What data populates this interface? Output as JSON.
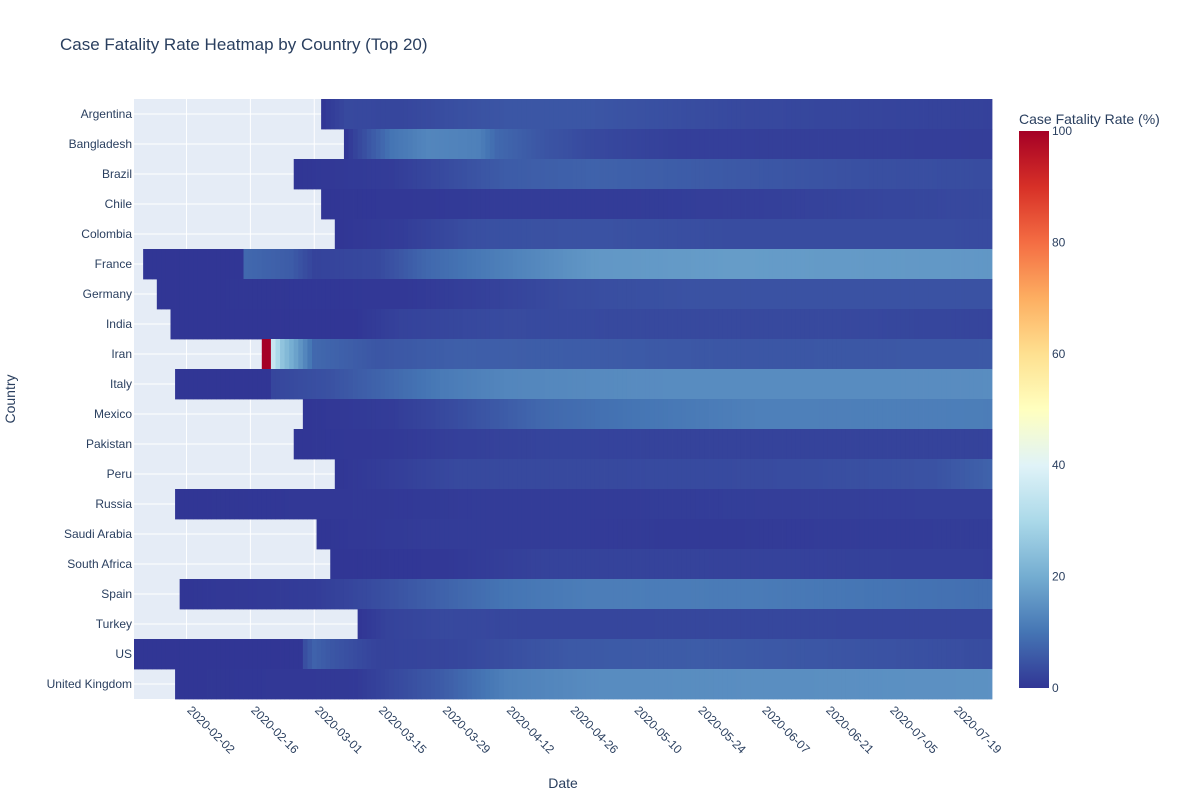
{
  "chart_data": {
    "type": "heatmap",
    "title": "Case Fatality Rate Heatmap by Country (Top 20)",
    "xlabel": "Date",
    "ylabel": "Country",
    "x_start": "2020-01-22",
    "x_end": "2020-07-27",
    "x_ticks": [
      "2020-02-02",
      "2020-02-16",
      "2020-03-01",
      "2020-03-15",
      "2020-03-29",
      "2020-04-12",
      "2020-04-26",
      "2020-05-10",
      "2020-05-24",
      "2020-06-07",
      "2020-06-21",
      "2020-07-05",
      "2020-07-19"
    ],
    "colorbar": {
      "title": "Case Fatality Rate (%)",
      "range": [
        0,
        100
      ],
      "ticks": [
        "0",
        "20",
        "40",
        "60",
        "80",
        "100"
      ],
      "colorscale": [
        "#313695",
        "#4575b4",
        "#74add1",
        "#abd9e9",
        "#e0f3f8",
        "#ffffbf",
        "#fee090",
        "#fdae61",
        "#f46d43",
        "#d73027",
        "#a50026"
      ]
    },
    "missing_color": "#e5ecf6",
    "countries": [
      {
        "name": "Argentina",
        "first_date": "2020-03-03",
        "cfr": [
          [
            "2020-03-03",
            0
          ],
          [
            "2020-03-08",
            3
          ],
          [
            "2020-03-20",
            2.5
          ],
          [
            "2020-04-01",
            4
          ],
          [
            "2020-04-12",
            5
          ],
          [
            "2020-05-01",
            5
          ],
          [
            "2020-06-01",
            3
          ],
          [
            "2020-07-27",
            1.8
          ]
        ]
      },
      {
        "name": "Bangladesh",
        "first_date": "2020-03-08",
        "cfr": [
          [
            "2020-03-08",
            0
          ],
          [
            "2020-03-18",
            10
          ],
          [
            "2020-03-26",
            13
          ],
          [
            "2020-04-06",
            12
          ],
          [
            "2020-04-10",
            8
          ],
          [
            "2020-04-20",
            5
          ],
          [
            "2020-05-01",
            3
          ],
          [
            "2020-05-20",
            1.5
          ],
          [
            "2020-07-27",
            1.3
          ]
        ]
      },
      {
        "name": "Brazil",
        "first_date": "2020-02-26",
        "cfr": [
          [
            "2020-02-26",
            0
          ],
          [
            "2020-03-18",
            1
          ],
          [
            "2020-03-28",
            3
          ],
          [
            "2020-04-12",
            6
          ],
          [
            "2020-05-01",
            7
          ],
          [
            "2020-06-01",
            5.5
          ],
          [
            "2020-07-01",
            4
          ],
          [
            "2020-07-27",
            3.5
          ]
        ]
      },
      {
        "name": "Chile",
        "first_date": "2020-03-03",
        "cfr": [
          [
            "2020-03-03",
            0
          ],
          [
            "2020-03-28",
            0.5
          ],
          [
            "2020-04-12",
            1
          ],
          [
            "2020-05-10",
            1
          ],
          [
            "2020-06-07",
            1.5
          ],
          [
            "2020-06-21",
            2
          ],
          [
            "2020-07-05",
            2.5
          ],
          [
            "2020-07-27",
            3
          ]
        ]
      },
      {
        "name": "Colombia",
        "first_date": "2020-03-06",
        "cfr": [
          [
            "2020-03-06",
            0
          ],
          [
            "2020-03-20",
            1
          ],
          [
            "2020-04-05",
            4
          ],
          [
            "2020-05-01",
            4.5
          ],
          [
            "2020-06-01",
            3.5
          ],
          [
            "2020-07-27",
            3.4
          ]
        ]
      },
      {
        "name": "France",
        "first_date": "2020-01-24",
        "cfr": [
          [
            "2020-01-24",
            0
          ],
          [
            "2020-02-14",
            0
          ],
          [
            "2020-02-15",
            8
          ],
          [
            "2020-02-25",
            6
          ],
          [
            "2020-03-01",
            2
          ],
          [
            "2020-03-15",
            3
          ],
          [
            "2020-03-26",
            8
          ],
          [
            "2020-04-12",
            12
          ],
          [
            "2020-05-01",
            16
          ],
          [
            "2020-06-01",
            17
          ],
          [
            "2020-07-27",
            16
          ]
        ]
      },
      {
        "name": "Germany",
        "first_date": "2020-01-27",
        "cfr": [
          [
            "2020-01-27",
            0
          ],
          [
            "2020-03-20",
            0.3
          ],
          [
            "2020-04-05",
            1.5
          ],
          [
            "2020-04-26",
            3.5
          ],
          [
            "2020-05-24",
            4.5
          ],
          [
            "2020-07-27",
            4.5
          ]
        ]
      },
      {
        "name": "India",
        "first_date": "2020-01-30",
        "cfr": [
          [
            "2020-01-30",
            0
          ],
          [
            "2020-03-10",
            0
          ],
          [
            "2020-03-20",
            2
          ],
          [
            "2020-04-12",
            3.3
          ],
          [
            "2020-05-10",
            3
          ],
          [
            "2020-06-21",
            3
          ],
          [
            "2020-07-27",
            2.3
          ]
        ]
      },
      {
        "name": "Iran",
        "first_date": "2020-02-19",
        "cfr": [
          [
            "2020-02-19",
            100
          ],
          [
            "2020-02-20",
            100
          ],
          [
            "2020-02-21",
            35
          ],
          [
            "2020-02-23",
            25
          ],
          [
            "2020-02-26",
            18
          ],
          [
            "2020-03-01",
            8
          ],
          [
            "2020-03-15",
            5
          ],
          [
            "2020-04-01",
            6.5
          ],
          [
            "2020-05-01",
            6
          ],
          [
            "2020-06-01",
            5
          ],
          [
            "2020-07-27",
            5.5
          ]
        ]
      },
      {
        "name": "Italy",
        "first_date": "2020-01-31",
        "cfr": [
          [
            "2020-01-31",
            0
          ],
          [
            "2020-02-20",
            0
          ],
          [
            "2020-02-21",
            2.5
          ],
          [
            "2020-03-05",
            4.5
          ],
          [
            "2020-03-18",
            8
          ],
          [
            "2020-03-29",
            11
          ],
          [
            "2020-04-12",
            13
          ],
          [
            "2020-05-10",
            14
          ],
          [
            "2020-07-27",
            14.2
          ]
        ]
      },
      {
        "name": "Mexico",
        "first_date": "2020-02-28",
        "cfr": [
          [
            "2020-02-28",
            0
          ],
          [
            "2020-03-18",
            1
          ],
          [
            "2020-04-01",
            3.5
          ],
          [
            "2020-04-20",
            8
          ],
          [
            "2020-05-10",
            10
          ],
          [
            "2020-06-07",
            12
          ],
          [
            "2020-07-27",
            11.5
          ]
        ]
      },
      {
        "name": "Pakistan",
        "first_date": "2020-02-26",
        "cfr": [
          [
            "2020-02-26",
            0
          ],
          [
            "2020-03-18",
            0.5
          ],
          [
            "2020-04-01",
            1.5
          ],
          [
            "2020-04-20",
            2.2
          ],
          [
            "2020-06-01",
            2
          ],
          [
            "2020-07-27",
            2.1
          ]
        ]
      },
      {
        "name": "Peru",
        "first_date": "2020-03-06",
        "cfr": [
          [
            "2020-03-06",
            0
          ],
          [
            "2020-03-20",
            1.5
          ],
          [
            "2020-04-01",
            3
          ],
          [
            "2020-05-01",
            3
          ],
          [
            "2020-06-07",
            3.3
          ],
          [
            "2020-07-15",
            4.5
          ],
          [
            "2020-07-27",
            7
          ]
        ]
      },
      {
        "name": "Russia",
        "first_date": "2020-01-31",
        "cfr": [
          [
            "2020-01-31",
            0
          ],
          [
            "2020-03-20",
            0.5
          ],
          [
            "2020-04-10",
            1
          ],
          [
            "2020-05-10",
            1
          ],
          [
            "2020-06-21",
            1.4
          ],
          [
            "2020-07-27",
            1.6
          ]
        ]
      },
      {
        "name": "Saudi Arabia",
        "first_date": "2020-03-02",
        "cfr": [
          [
            "2020-03-02",
            0
          ],
          [
            "2020-03-28",
            1
          ],
          [
            "2020-04-20",
            1
          ],
          [
            "2020-05-24",
            0.6
          ],
          [
            "2020-06-21",
            0.9
          ],
          [
            "2020-07-27",
            1.1
          ]
        ]
      },
      {
        "name": "South Africa",
        "first_date": "2020-03-05",
        "cfr": [
          [
            "2020-03-05",
            0
          ],
          [
            "2020-03-29",
            0.3
          ],
          [
            "2020-04-20",
            2
          ],
          [
            "2020-05-24",
            2
          ],
          [
            "2020-07-27",
            1.5
          ]
        ]
      },
      {
        "name": "Spain",
        "first_date": "2020-02-01",
        "cfr": [
          [
            "2020-02-01",
            0
          ],
          [
            "2020-03-01",
            1
          ],
          [
            "2020-03-12",
            3
          ],
          [
            "2020-03-29",
            7
          ],
          [
            "2020-04-12",
            10
          ],
          [
            "2020-05-01",
            11.5
          ],
          [
            "2020-06-07",
            11
          ],
          [
            "2020-07-27",
            9
          ]
        ]
      },
      {
        "name": "Turkey",
        "first_date": "2020-03-11",
        "cfr": [
          [
            "2020-03-11",
            0
          ],
          [
            "2020-03-17",
            2
          ],
          [
            "2020-03-29",
            3
          ],
          [
            "2020-04-20",
            2.5
          ],
          [
            "2020-06-01",
            2.7
          ],
          [
            "2020-07-27",
            2.5
          ]
        ]
      },
      {
        "name": "US",
        "first_date": "2020-01-22",
        "cfr": [
          [
            "2020-01-22",
            0
          ],
          [
            "2020-02-27",
            0
          ],
          [
            "2020-02-28",
            4
          ],
          [
            "2020-03-01",
            7
          ],
          [
            "2020-03-05",
            5
          ],
          [
            "2020-03-15",
            2
          ],
          [
            "2020-04-01",
            2.5
          ],
          [
            "2020-04-26",
            5.5
          ],
          [
            "2020-05-24",
            6
          ],
          [
            "2020-06-21",
            5
          ],
          [
            "2020-07-27",
            3.5
          ]
        ]
      },
      {
        "name": "United Kingdom",
        "first_date": "2020-01-31",
        "cfr": [
          [
            "2020-01-31",
            0
          ],
          [
            "2020-03-10",
            0.5
          ],
          [
            "2020-03-29",
            6
          ],
          [
            "2020-04-12",
            12
          ],
          [
            "2020-05-01",
            14
          ],
          [
            "2020-07-27",
            15
          ]
        ]
      }
    ]
  }
}
